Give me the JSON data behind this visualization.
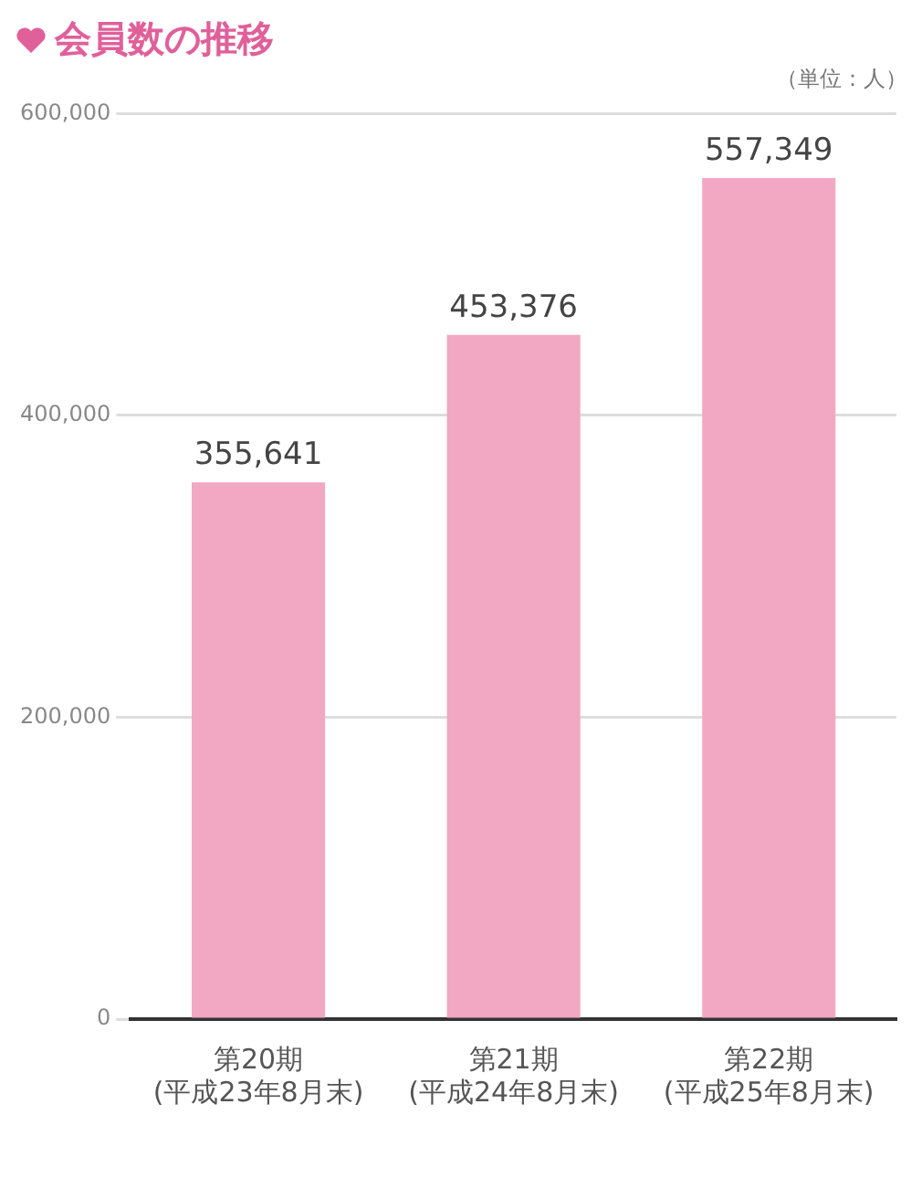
{
  "chart_data": {
    "type": "bar",
    "title": "会員数の推移",
    "annotations": [
      "（単位：人）"
    ],
    "categories": [
      "第20期\n(平成23年8月末)",
      "第21期\n(平成24年8月末)",
      "第22期\n(平成25年8月末)"
    ],
    "values": [
      355641,
      453376,
      557349
    ],
    "color": "#f2a7c3",
    "ylim": [
      0,
      600000
    ],
    "yticks": [
      {
        "value": 0,
        "label": "0"
      },
      {
        "value": 200000,
        "label": "200,000"
      },
      {
        "value": 400000,
        "label": "400,000"
      },
      {
        "value": 600000,
        "label": "600,000"
      }
    ],
    "value_labels": [
      "355,641",
      "453,376",
      "557,349"
    ],
    "grid": "y",
    "legend": false
  }
}
